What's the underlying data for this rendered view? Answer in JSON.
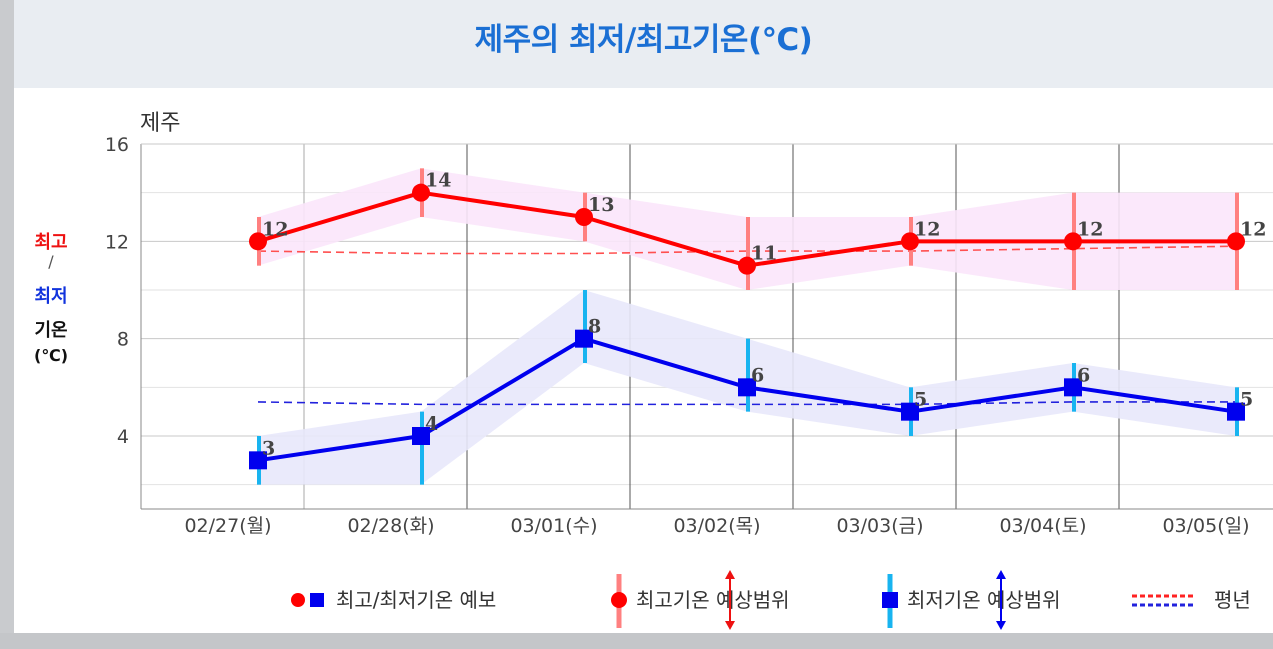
{
  "page_title": "제주의 최저/최고기온(℃)",
  "chart_data": {
    "type": "line",
    "location_label": "제주",
    "ylabel": {
      "max": "최고",
      "sep": "/",
      "min": "최저",
      "word": "기온",
      "unit": "(℃)"
    },
    "ylim": [
      1,
      16
    ],
    "yticks": [
      4,
      8,
      12,
      16
    ],
    "categories": [
      "02/27(월)",
      "02/28(화)",
      "03/01(수)",
      "03/02(목)",
      "03/03(금)",
      "03/04(토)",
      "03/05(일)"
    ],
    "series": [
      {
        "name": "최고기온",
        "color": "#ff0000",
        "marker": "circle",
        "values": [
          12,
          14,
          13,
          11,
          12,
          12,
          12
        ],
        "labels": [
          "12",
          "14",
          "13",
          "11",
          "12",
          "12",
          "12"
        ],
        "range_low": [
          11,
          13,
          12,
          10,
          11,
          10,
          10
        ],
        "range_high": [
          13,
          15,
          14,
          13,
          13,
          14,
          14
        ],
        "range_color": "#ff8080",
        "band_color": "#fbe6fb"
      },
      {
        "name": "최저기온",
        "color": "#0000ee",
        "marker": "square",
        "values": [
          3,
          4,
          8,
          6,
          5,
          6,
          5
        ],
        "labels": [
          "3",
          "4",
          "8",
          "6",
          "5",
          "6",
          "5"
        ],
        "range_low": [
          2,
          2,
          7,
          5,
          4,
          5,
          4
        ],
        "range_high": [
          4,
          5,
          10,
          8,
          6,
          7,
          6
        ],
        "range_color": "#18b4f0",
        "band_color": "#e8e8fb"
      }
    ],
    "normal": {
      "max": [
        11.6,
        11.5,
        11.5,
        11.6,
        11.6,
        11.7,
        11.8
      ],
      "min": [
        5.4,
        5.3,
        5.3,
        5.3,
        5.3,
        5.4,
        5.4
      ]
    },
    "legend": {
      "forecast": "최고/최저기온 예보",
      "max_range": "최고기온 예상범위",
      "min_range": "최저기온 예상범위",
      "normal": "평년"
    }
  }
}
